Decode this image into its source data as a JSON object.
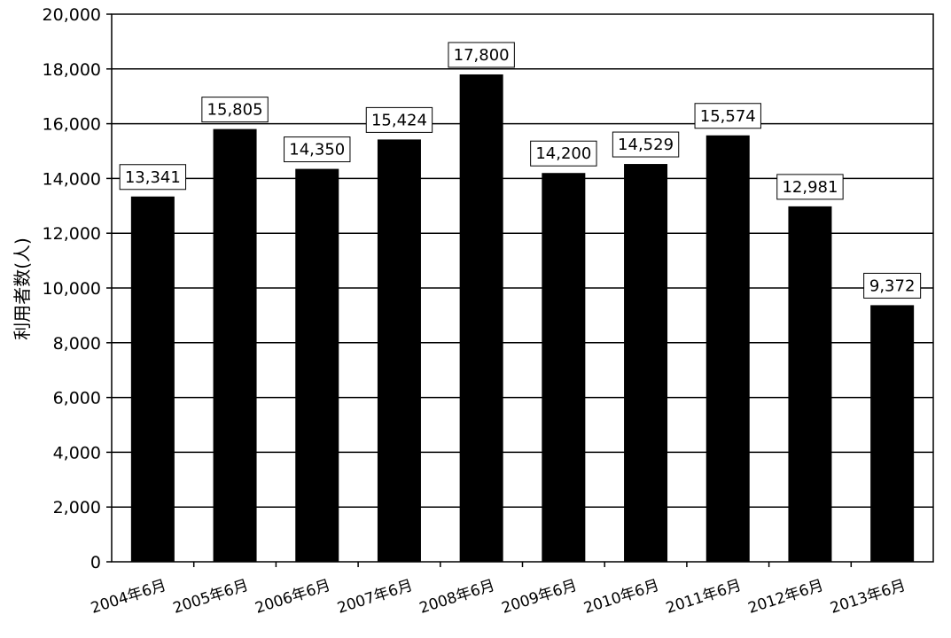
{
  "chart_data": {
    "type": "bar",
    "title": "",
    "xlabel": "",
    "ylabel": "利用者数(人)",
    "ylim": [
      0,
      20000
    ],
    "ytick_step": 2000,
    "yticks": [
      "0",
      "2,000",
      "4,000",
      "6,000",
      "8,000",
      "10,000",
      "12,000",
      "14,000",
      "16,000",
      "18,000",
      "20,000"
    ],
    "categories": [
      "2004年6月",
      "2005年6月",
      "2006年6月",
      "2007年6月",
      "2008年6月",
      "2009年6月",
      "2010年6月",
      "2011年6月",
      "2012年6月",
      "2013年6月"
    ],
    "values": [
      13341,
      15805,
      14350,
      15424,
      17800,
      14200,
      14529,
      15574,
      12981,
      9372
    ],
    "value_labels": [
      "13,341",
      "15,805",
      "14,350",
      "15,424",
      "17,800",
      "14,200",
      "14,529",
      "15,574",
      "12,981",
      "9,372"
    ],
    "grid": true,
    "legend": "none",
    "bar_color": "#000000"
  }
}
